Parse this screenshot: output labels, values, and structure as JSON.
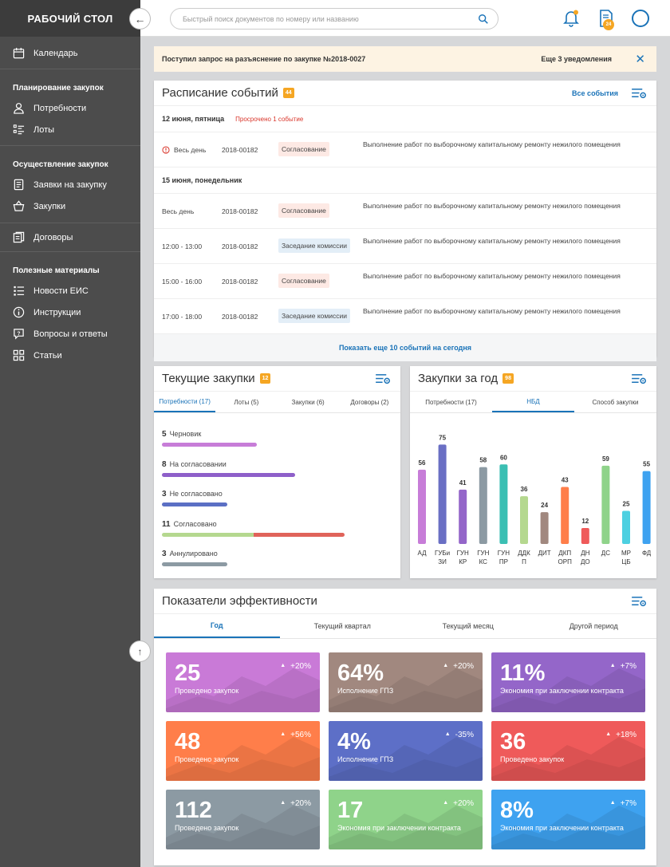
{
  "sidebar": {
    "title": "РАБОЧИЙ СТОЛ",
    "calendar": "Календарь",
    "sec_planning": "Планирование закупок",
    "needs": "Потребности",
    "lots": "Лоты",
    "sec_execution": "Осуществление закупок",
    "requests": "Заявки на закупку",
    "purchases": "Закупки",
    "contracts": "Договоры",
    "sec_materials": "Полезные материалы",
    "news": "Новости ЕИС",
    "instructions": "Инструкции",
    "faq": "Вопросы и ответы",
    "articles": "Статьи"
  },
  "topbar": {
    "search_placeholder": "Быстрый поиск документов по номеру или названию",
    "doc_badge": "24"
  },
  "notification": {
    "text": "Поступил запрос на разъяснение по закупке №2018-0027",
    "more": "Еще 3 уведомления",
    "close": "✕"
  },
  "schedule": {
    "title": "Расписание событий",
    "badge": "44",
    "all_events": "Все события",
    "day1": "12 июня, пятница",
    "overdue": "Просрочено 1 событие",
    "day2": "15 июня, понедельник",
    "events1": [
      {
        "time": "Весь день",
        "num": "2018-00182",
        "status": "Согласование",
        "desc": "Выполнение работ по выборочному капитальному ремонту нежилого помещения"
      }
    ],
    "events2": [
      {
        "time": "Весь день",
        "num": "2018-00182",
        "status": "Согласование",
        "desc": "Выполнение работ по выборочному капитальному ремонту нежилого помещения"
      },
      {
        "time": "12:00 - 13:00",
        "num": "2018-00182",
        "status": "Заседание комиссии",
        "desc": "Выполнение работ по выборочному капитальному ремонту нежилого помещения"
      },
      {
        "time": "15:00 - 16:00",
        "num": "2018-00182",
        "status": "Согласование",
        "desc": "Выполнение работ по выборочному капитальному ремонту нежилого помещения"
      },
      {
        "time": "17:00 - 18:00",
        "num": "2018-00182",
        "status": "Заседание комиссии",
        "desc": "Выполнение работ по выборочному капитальному ремонту нежилого помещения"
      }
    ],
    "show_more": "Показать еще 10 событий на сегодня"
  },
  "current": {
    "title": "Текущие закупки",
    "badge": "12",
    "tabs": [
      "Потребности (17)",
      "Лоты (5)",
      "Закупки (6)",
      "Договоры (2)"
    ],
    "rows": [
      {
        "count": "5",
        "label": "Черновик",
        "fill": 0.52,
        "color": "#c77dd8"
      },
      {
        "count": "8",
        "label": "На согласовании",
        "fill": 0.73,
        "color": "#8e5fc9"
      },
      {
        "count": "3",
        "label": "Не согласовано",
        "fill": 0.36,
        "color": "#5b6fc4"
      },
      {
        "count": "11",
        "label": "Согласовано",
        "fill": 1.0,
        "color": "#b5d88f",
        "fill2": 0.5,
        "color2": "#e0635a"
      },
      {
        "count": "3",
        "label": "Аннулировано",
        "fill": 0.36,
        "color": "#8c9aa3"
      }
    ]
  },
  "yearly": {
    "title": "Закупки за год",
    "badge": "98",
    "tabs": [
      "Потребности (17)",
      "НБД",
      "Способ закупки"
    ]
  },
  "chart_data": {
    "type": "bar",
    "categories": [
      "АД",
      "ГУБИ ЗИ",
      "ГУН КР",
      "ГУН КС",
      "ГУН ПР",
      "ДДК П",
      "ДИТ",
      "ДКП ОРП",
      "ДН ДО",
      "ДС",
      "МР ЦБ",
      "ФД"
    ],
    "cat_lines": [
      [
        "АД"
      ],
      [
        "ГУБи",
        "ЗИ"
      ],
      [
        "ГУН",
        "КР"
      ],
      [
        "ГУН",
        "КС"
      ],
      [
        "ГУН",
        "ПР"
      ],
      [
        "ДДК",
        "П"
      ],
      [
        "ДИТ"
      ],
      [
        "ДКП",
        "ОРП"
      ],
      [
        "ДН",
        "ДО"
      ],
      [
        "ДС"
      ],
      [
        "МР",
        "ЦБ"
      ],
      [
        "ФД"
      ]
    ],
    "values": [
      56,
      75,
      41,
      58,
      60,
      36,
      24,
      43,
      12,
      59,
      25,
      55
    ],
    "colors": [
      "#c77dd8",
      "#6a6fc4",
      "#9466c9",
      "#8c9aa3",
      "#3bbfb3",
      "#b5d88f",
      "#a1887f",
      "#ff7e4a",
      "#ef5a5a",
      "#8fd38a",
      "#4dd0e1",
      "#3ea2f0"
    ],
    "ylim": [
      0,
      80
    ]
  },
  "kpi": {
    "title": "Показатели эффективности",
    "tabs": [
      "Год",
      "Текущий квартал",
      "Текущий месяц",
      "Другой период"
    ],
    "cards": [
      {
        "value": "25",
        "label": "Проведено закупок",
        "change": "+20%",
        "color": "#c97ad7"
      },
      {
        "value": "64%",
        "label": "Исполнение ГПЗ",
        "change": "+20%",
        "color": "#a1887f"
      },
      {
        "value": "11%",
        "label": "Экономия при заключении контракта",
        "change": "+7%",
        "color": "#9466c9"
      },
      {
        "value": "48",
        "label": "Проведено закупок",
        "change": "+56%",
        "color": "#ff7e4a"
      },
      {
        "value": "4%",
        "label": "Исполнение ГПЗ",
        "change": "-35%",
        "color": "#5d6fc7"
      },
      {
        "value": "36",
        "label": "Проведено закупок",
        "change": "+18%",
        "color": "#ef5a5a"
      },
      {
        "value": "112",
        "label": "Проведено закупок",
        "change": "+20%",
        "color": "#8c9aa3"
      },
      {
        "value": "17",
        "label": "Экономия при заключении контракта",
        "change": "+20%",
        "color": "#8fd38a"
      },
      {
        "value": "8%",
        "label": "Экономия при заключении контракта",
        "change": "+7%",
        "color": "#3ea2f0"
      }
    ]
  }
}
